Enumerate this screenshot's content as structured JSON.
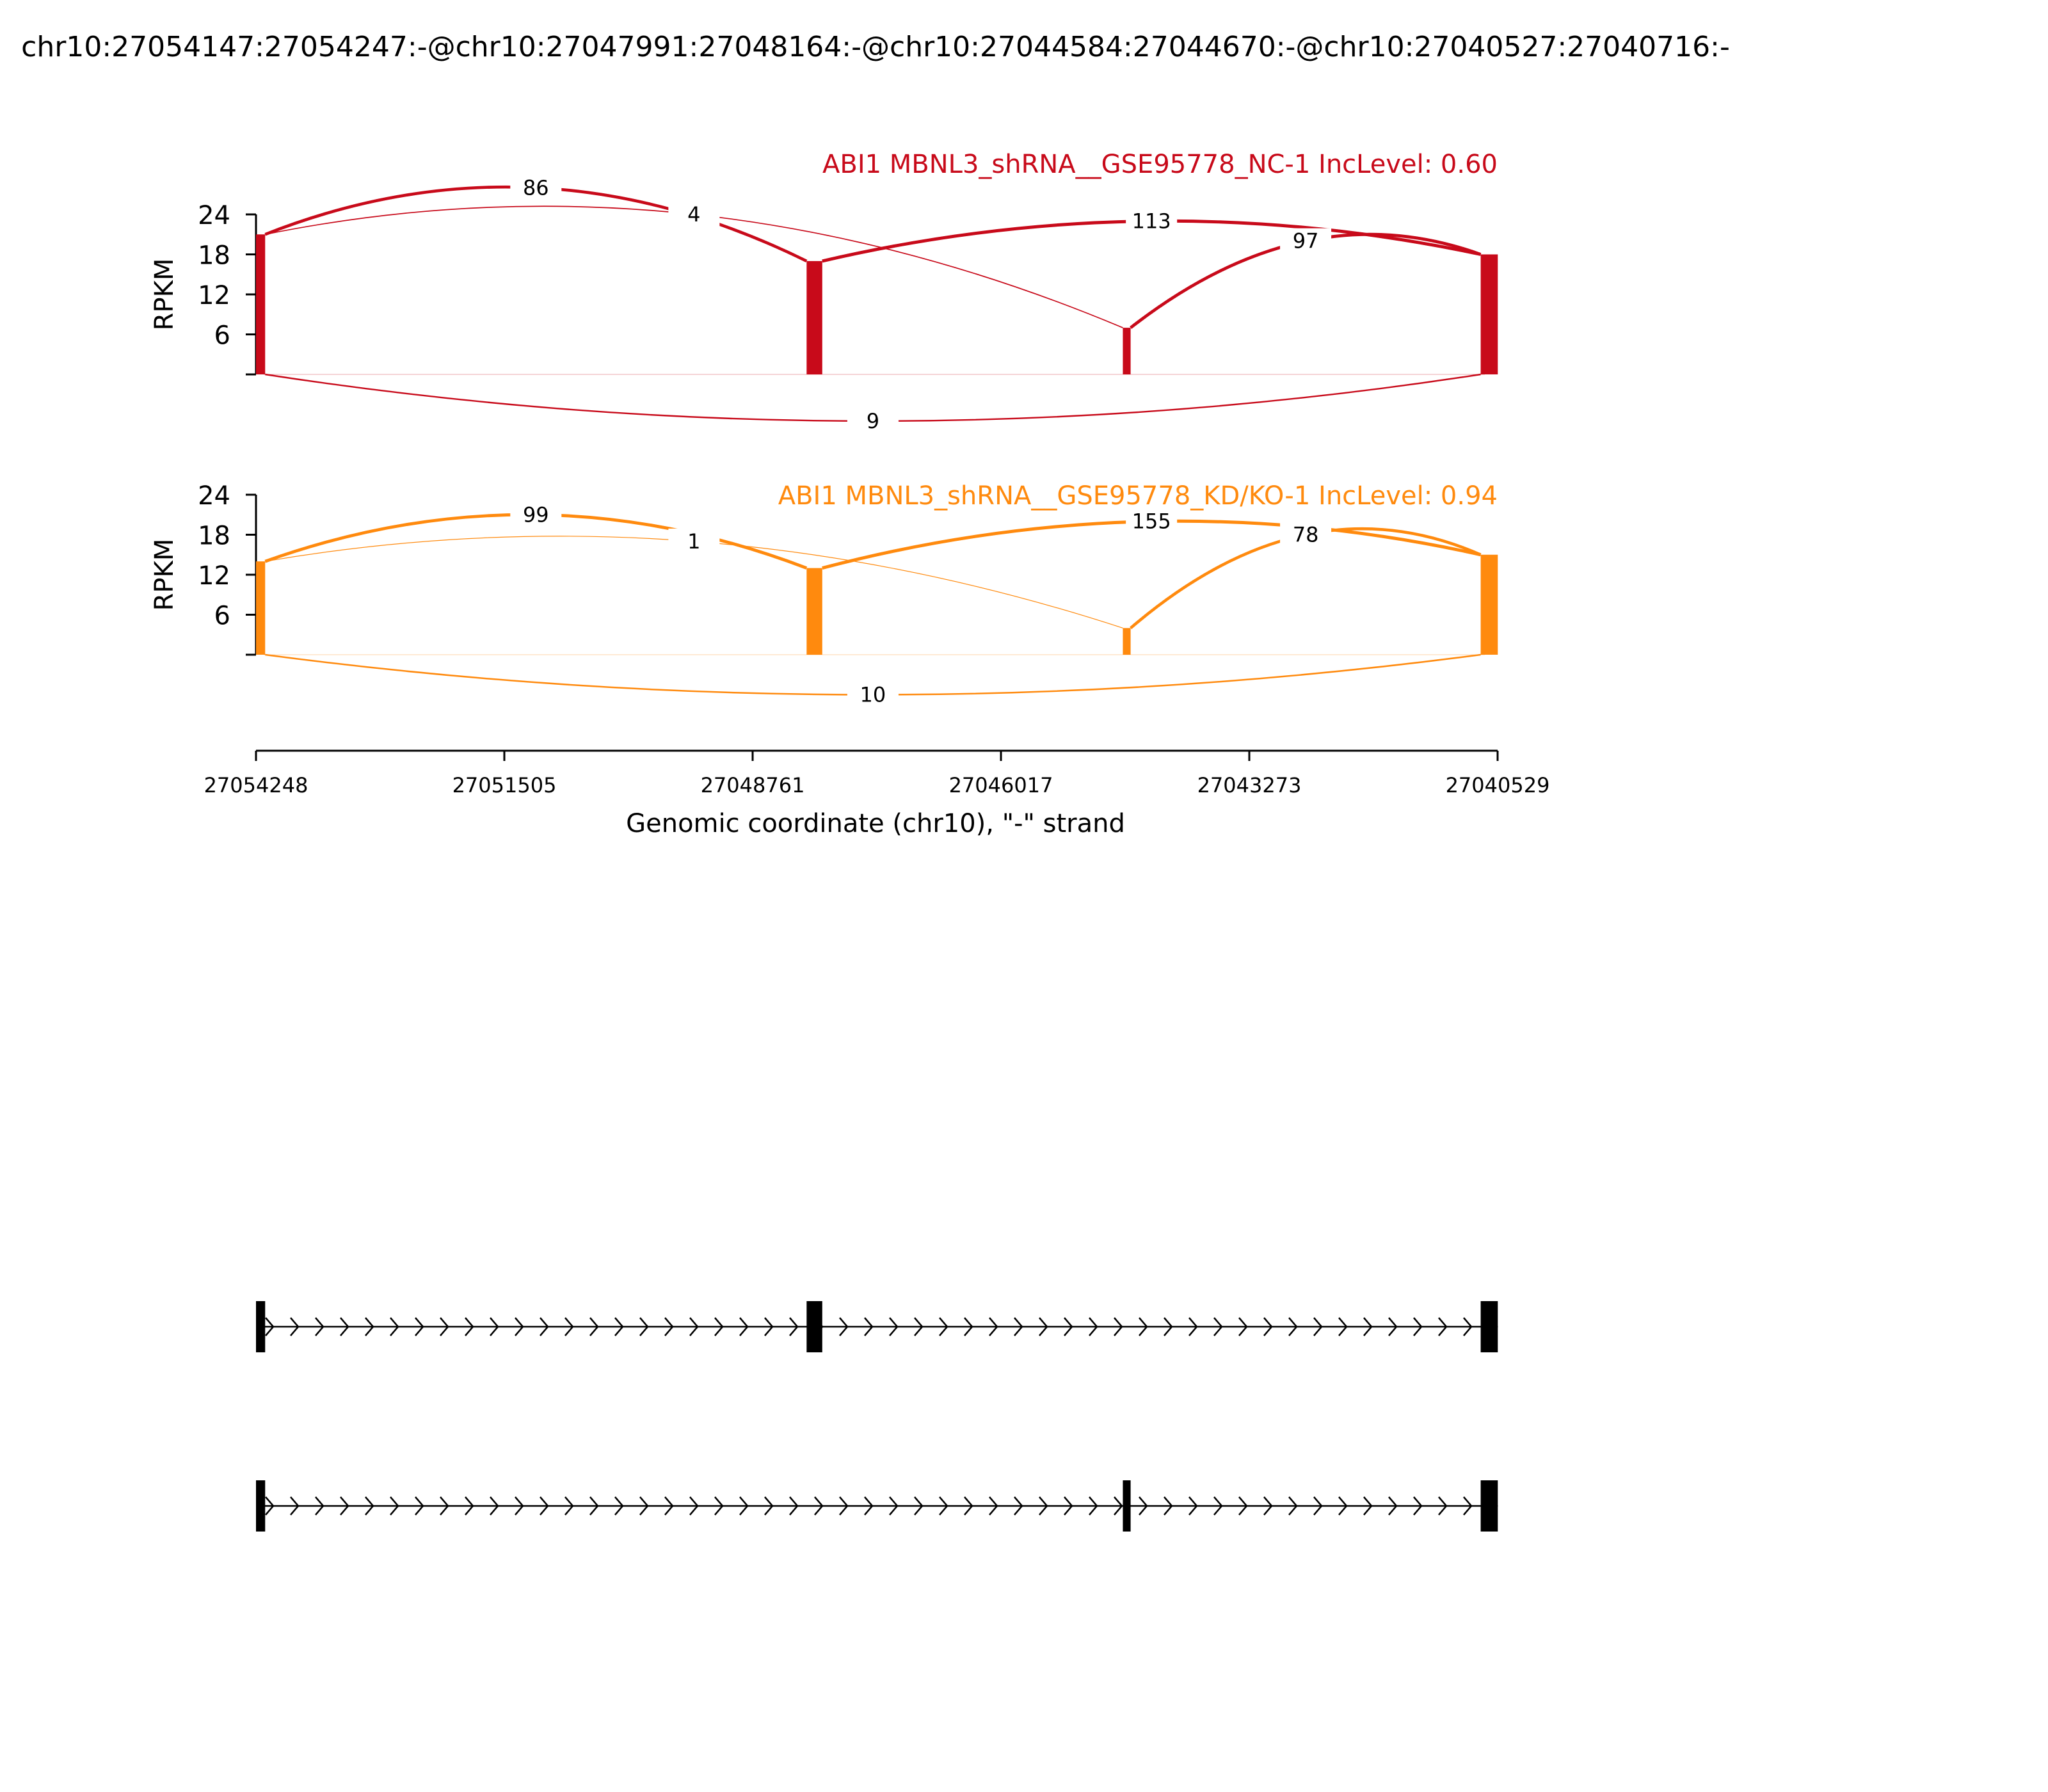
{
  "title": "chr10:27054147:27054247:-@chr10:27047991:27048164:-@chr10:27044584:27044670:-@chr10:27040527:27040716:-",
  "chart_data": {
    "type": "sashimi",
    "x_axis": {
      "label": "Genomic coordinate (chr10), \"-\" strand",
      "ticks": [
        "27054248",
        "27051505",
        "27048761",
        "27046017",
        "27043273",
        "27040529"
      ],
      "range": [
        27054248,
        27040529
      ]
    },
    "tracks": [
      {
        "label": "ABI1 MBNL3_shRNA__GSE95778_NC-1 IncLevel: 0.60",
        "color": "#c80a1a",
        "ylabel": "RPKM",
        "ylim": [
          0,
          24
        ],
        "yticks": [
          "6",
          "12",
          "18",
          "24"
        ],
        "exon_coverage": [
          {
            "start": 27054248,
            "end": 27054147,
            "level": 21
          },
          {
            "start": 27048164,
            "end": 27047991,
            "level": 17
          },
          {
            "start": 27044670,
            "end": 27044584,
            "level": 7
          },
          {
            "start": 27040716,
            "end": 27040527,
            "level": 18
          }
        ],
        "junctions": [
          {
            "from": 27054147,
            "to": 27048164,
            "count": "86",
            "side": "above",
            "apex": 28
          },
          {
            "from": 27054147,
            "to": 27044670,
            "count": "4",
            "side": "above",
            "apex": 24
          },
          {
            "from": 27047991,
            "to": 27040716,
            "count": "113",
            "side": "above",
            "apex": 23
          },
          {
            "from": 27044584,
            "to": 27040716,
            "count": "97",
            "side": "above",
            "apex": 20
          },
          {
            "from": 27054147,
            "to": 27040716,
            "count": "9",
            "side": "below",
            "apex": -7
          }
        ]
      },
      {
        "label": "ABI1 MBNL3_shRNA__GSE95778_KD/KO-1 IncLevel: 0.94",
        "color": "#ff8a0e",
        "ylabel": "RPKM",
        "ylim": [
          0,
          24
        ],
        "yticks": [
          "6",
          "12",
          "18",
          "24"
        ],
        "exon_coverage": [
          {
            "start": 27054248,
            "end": 27054147,
            "level": 14
          },
          {
            "start": 27048164,
            "end": 27047991,
            "level": 13
          },
          {
            "start": 27044670,
            "end": 27044584,
            "level": 4
          },
          {
            "start": 27040716,
            "end": 27040527,
            "level": 15
          }
        ],
        "junctions": [
          {
            "from": 27054147,
            "to": 27048164,
            "count": "99",
            "side": "above",
            "apex": 21
          },
          {
            "from": 27054147,
            "to": 27044670,
            "count": "1",
            "side": "above",
            "apex": 17
          },
          {
            "from": 27047991,
            "to": 27040716,
            "count": "155",
            "side": "above",
            "apex": 20
          },
          {
            "from": 27044584,
            "to": 27040716,
            "count": "78",
            "side": "above",
            "apex": 18
          },
          {
            "from": 27054147,
            "to": 27040716,
            "count": "10",
            "side": "below",
            "apex": -6
          }
        ]
      }
    ],
    "isoforms": [
      {
        "exons": [
          [
            27054248,
            27054147
          ],
          [
            27048164,
            27047991
          ],
          [
            27040716,
            27040527
          ]
        ]
      },
      {
        "exons": [
          [
            27054248,
            27054147
          ],
          [
            27044670,
            27044584
          ],
          [
            27040716,
            27040527
          ]
        ]
      }
    ]
  }
}
